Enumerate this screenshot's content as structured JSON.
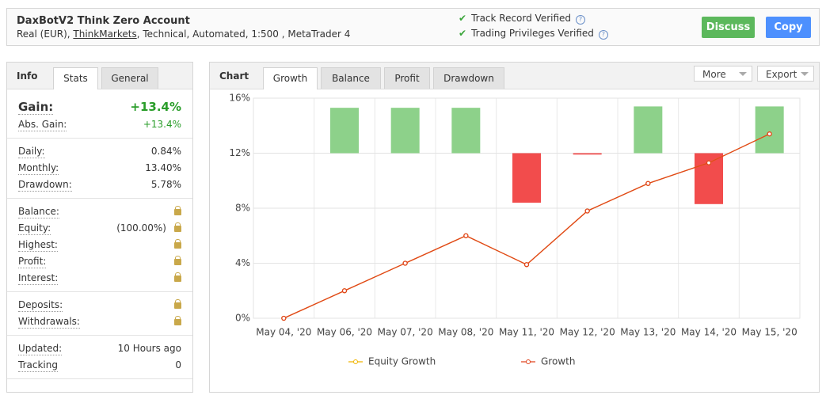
{
  "header": {
    "title": "DaxBotV2 Think Zero Account",
    "subtitle": [
      "Real (EUR), ",
      "ThinkMarkets",
      ", Technical, Automated, 1:500 , MetaTrader 4"
    ],
    "verified": [
      "Track Record Verified",
      "Trading Privileges Verified"
    ],
    "buttons": [
      "Discuss",
      "Copy"
    ]
  },
  "info": {
    "tabs": [
      "Info",
      "Stats",
      "General"
    ],
    "gain": {
      "label": "Gain:",
      "value": "+13.4%"
    },
    "groups": [
      [
        {
          "label": "Abs. Gain:",
          "value": "+13.4%"
        }
      ],
      [
        {
          "label": "Daily:",
          "value": "0.84%"
        },
        {
          "label": "Monthly:",
          "value": "13.40%"
        },
        {
          "label": "Drawdown:",
          "value": "5.78%"
        }
      ],
      [
        {
          "label": "Balance:",
          "locked": true
        },
        {
          "label": "Equity:",
          "value": "(100.00%)",
          "locked": true
        },
        {
          "label": "Highest:",
          "locked": true
        },
        {
          "label": "Profit:",
          "locked": true
        },
        {
          "label": "Interest:",
          "locked": true
        }
      ],
      [
        {
          "label": "Deposits:",
          "locked": true
        },
        {
          "label": "Withdrawals:",
          "locked": true
        }
      ],
      [
        {
          "label": "Updated:",
          "value": "10 Hours ago"
        },
        {
          "label": "Tracking",
          "value": "0"
        }
      ]
    ]
  },
  "chart_panel": {
    "title": "Chart",
    "tabs": [
      "Growth",
      "Balance",
      "Profit",
      "Drawdown"
    ],
    "menus": [
      "More",
      "Export"
    ]
  },
  "chart_data": {
    "type": "line",
    "categories": [
      "May 04, '20",
      "May 06, '20",
      "May 07, '20",
      "May 08, '20",
      "May 11, '20",
      "May 12, '20",
      "May 13, '20",
      "May 14, '20",
      "May 15, '20"
    ],
    "series": [
      {
        "name": "Equity Growth",
        "color": "#f0b400",
        "values": [
          0,
          2.0,
          4.0,
          6.0,
          3.9,
          7.8,
          9.8,
          11.3,
          13.4
        ]
      },
      {
        "name": "Growth",
        "color": "#e0451f",
        "values": [
          0,
          2.0,
          4.0,
          6.0,
          3.9,
          7.8,
          9.8,
          11.3,
          13.4
        ]
      }
    ],
    "bars": {
      "baseline": 12,
      "positive_color": "#8dd18a",
      "negative_color": "#f24c4c",
      "values": [
        null,
        3.3,
        3.3,
        3.3,
        -3.6,
        -0.1,
        3.4,
        -3.7,
        3.4
      ]
    },
    "ylim": [
      0,
      16
    ],
    "yticks": [
      {
        "value": 0,
        "label": "0%"
      },
      {
        "value": 4,
        "label": "4%"
      },
      {
        "value": 8,
        "label": "8%"
      },
      {
        "value": 12,
        "label": "12%"
      },
      {
        "value": 16,
        "label": "16%"
      }
    ],
    "grid": true
  }
}
